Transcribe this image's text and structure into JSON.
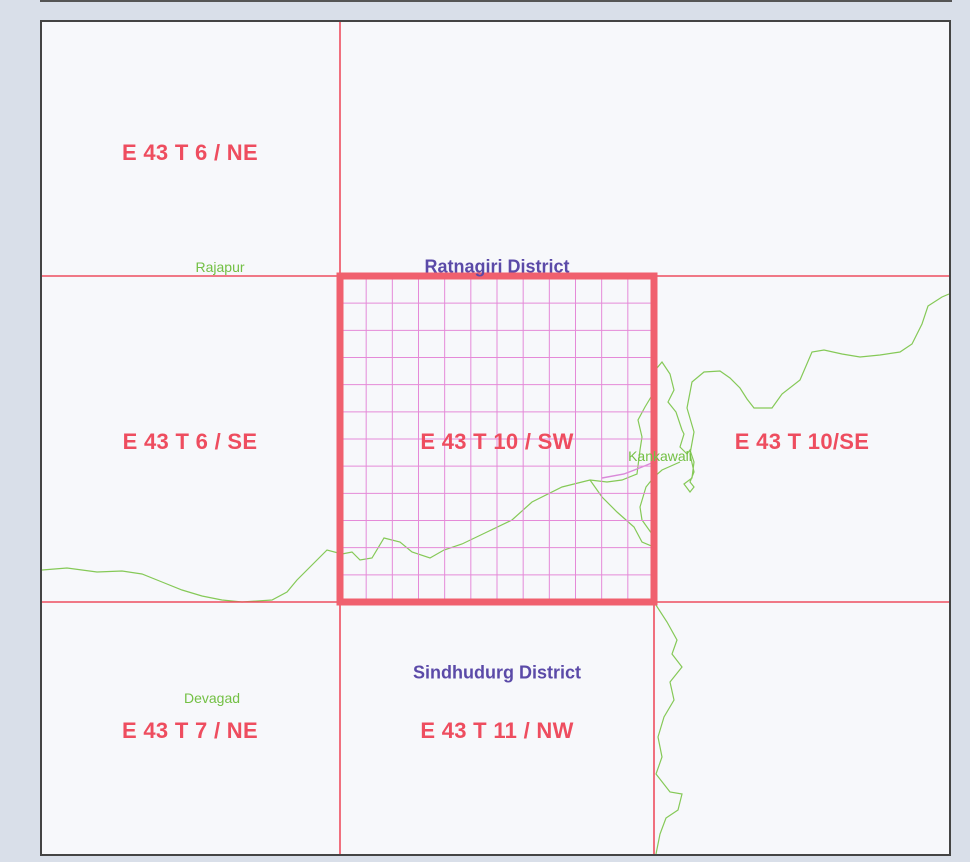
{
  "map": {
    "sheets": [
      {
        "id": "E 43 T 6 / NE"
      },
      {
        "id": "E 43 T 6 / SE"
      },
      {
        "id": "E 43 T 10 / SW"
      },
      {
        "id": "E 43 T 10/SE"
      },
      {
        "id": "E 43 T 7 / NE"
      },
      {
        "id": "E 43 T 11 / NW"
      }
    ],
    "districts": [
      {
        "name": "Ratnagiri District"
      },
      {
        "name": "Sindhudurg District"
      }
    ],
    "towns": [
      {
        "name": "Rajapur"
      },
      {
        "name": "Kankawali"
      },
      {
        "name": "Devagad"
      }
    ],
    "colors": {
      "sheet_label": "#ee4d5f",
      "grid_line": "#ee4d5f",
      "highlight_border": "#f0606e",
      "fine_grid": "#e58ad8",
      "district_label": "#5b4aa8",
      "town_label": "#73c044",
      "boundary_line": "#85c957"
    }
  }
}
